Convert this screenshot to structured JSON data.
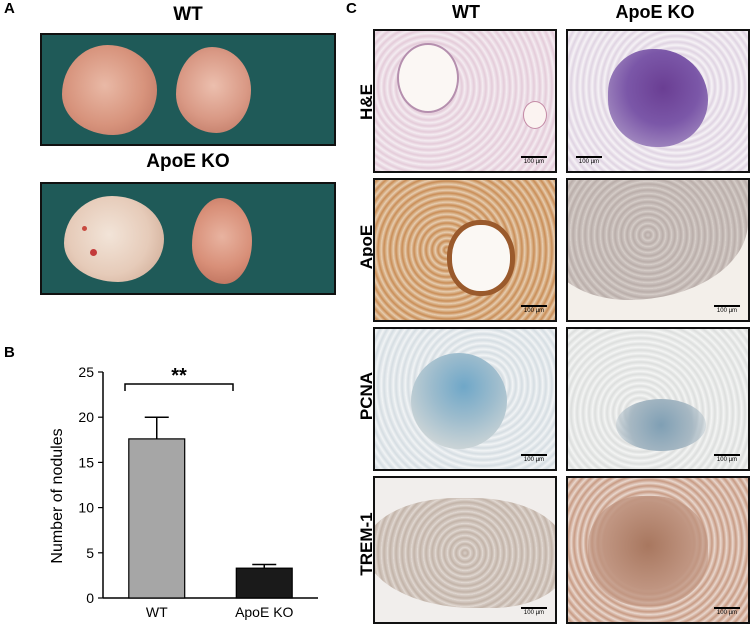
{
  "panel_a": {
    "letter": "A",
    "title_wt": "WT",
    "title_ko": "ApoE KO"
  },
  "panel_b": {
    "letter": "B",
    "significance": "**"
  },
  "panel_c": {
    "letter": "C",
    "col_wt": "WT",
    "col_ko": "ApoE KO",
    "rows": [
      "H&E",
      "ApoE",
      "PCNA",
      "TREM-1"
    ],
    "scale_label": "100 µm"
  },
  "colors": {
    "photo_bg": "#1f5a58",
    "bar_wt": "#a6a6a6",
    "bar_ko": "#1a1a1a"
  },
  "chart_data": {
    "type": "bar",
    "categories": [
      "WT",
      "ApoE KO"
    ],
    "values": [
      17.6,
      3.3
    ],
    "errors": [
      2.4,
      0.4
    ],
    "ylabel": "Number of nodules",
    "xlabel": "",
    "ylim": [
      0,
      25
    ],
    "yticks": [
      0,
      5,
      10,
      15,
      20,
      25
    ],
    "grid": false
  }
}
